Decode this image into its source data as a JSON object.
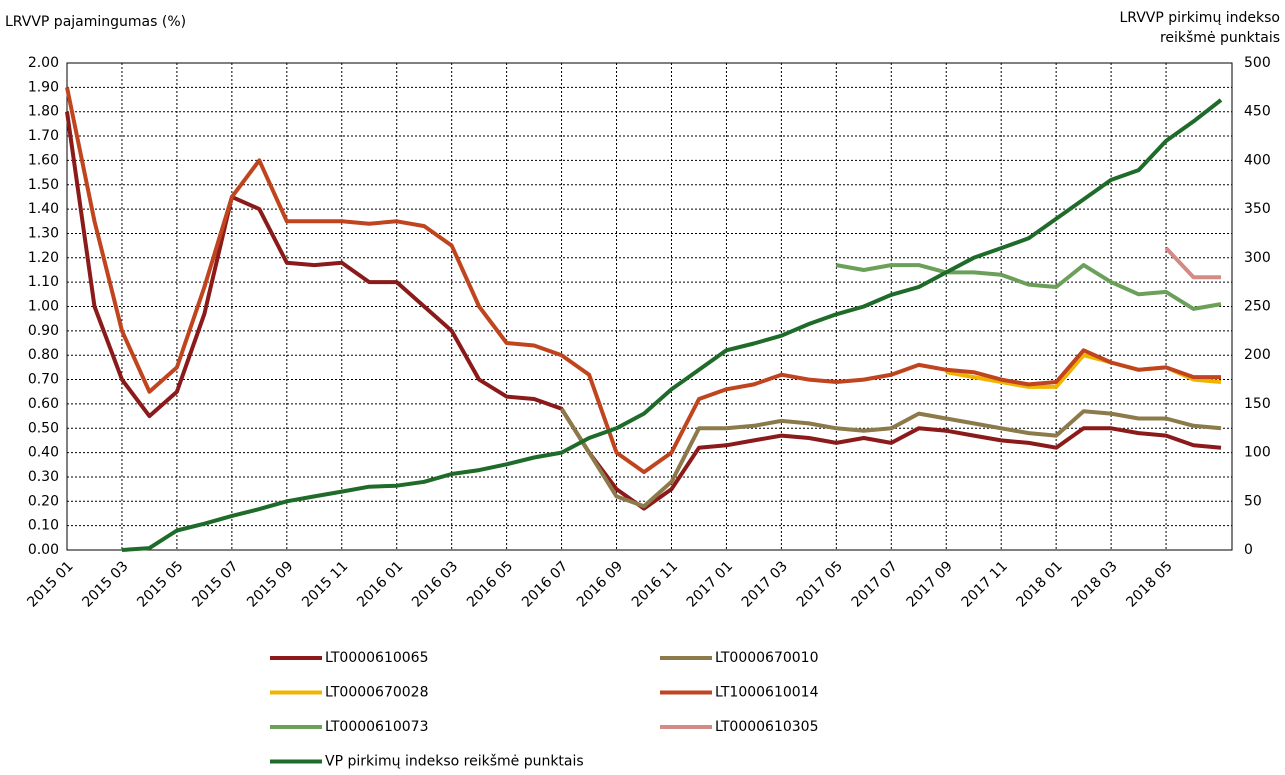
{
  "chart_data": {
    "type": "line",
    "y_label": "LRVVP pajamingumas (%)",
    "y2_label": [
      "LRVVP pirkimų indekso",
      "reikšmė punktais"
    ],
    "categories": [
      "2015 01",
      null,
      "2015 03",
      null,
      "2015 05",
      null,
      "2015 07",
      null,
      "2015 09",
      null,
      "2015 11",
      null,
      "2016 01",
      null,
      "2016 03",
      null,
      "2016 05",
      null,
      "2016 07",
      null,
      "2016 09",
      null,
      "2016 11",
      null,
      "2017 01",
      null,
      "2017 03",
      null,
      "2017 05",
      null,
      "2017 07",
      null,
      "2017 09",
      null,
      "2017 11",
      null,
      "2018 01",
      null,
      "2018 03",
      null,
      "2018 05",
      null,
      null
    ],
    "ylim": [
      0,
      2
    ],
    "yticks": [
      {
        "value": 0,
        "label": "0.00"
      },
      {
        "value": 0.1,
        "label": "0.10"
      },
      {
        "value": 0.2,
        "label": "0.20"
      },
      {
        "value": 0.3,
        "label": "0.30"
      },
      {
        "value": 0.4,
        "label": "0.40"
      },
      {
        "value": 0.5,
        "label": "0.50"
      },
      {
        "value": 0.6,
        "label": "0.60"
      },
      {
        "value": 0.7,
        "label": "0.70"
      },
      {
        "value": 0.8,
        "label": "0.80"
      },
      {
        "value": 0.9,
        "label": "0.90"
      },
      {
        "value": 1,
        "label": "1.00"
      },
      {
        "value": 1.1,
        "label": "1.10"
      },
      {
        "value": 1.2,
        "label": "1.20"
      },
      {
        "value": 1.3,
        "label": "1.30"
      },
      {
        "value": 1.4,
        "label": "1.40"
      },
      {
        "value": 1.5,
        "label": "1.50"
      },
      {
        "value": 1.6,
        "label": "1.60"
      },
      {
        "value": 1.7,
        "label": "1.70"
      },
      {
        "value": 1.8,
        "label": "1.80"
      },
      {
        "value": 1.9,
        "label": "1.90"
      },
      {
        "value": 2,
        "label": "2.00"
      }
    ],
    "y2lim": [
      0,
      500
    ],
    "y2ticks": [
      0,
      50,
      100,
      150,
      200,
      250,
      300,
      350,
      400,
      450,
      500
    ],
    "grid": true,
    "series": [
      {
        "name": "LT0000610065",
        "color": "#8b1a1a",
        "values": [
          1.8,
          1.0,
          0.7,
          0.55,
          0.65,
          0.97,
          1.45,
          1.4,
          1.18,
          1.17,
          1.18,
          1.1,
          1.1,
          1.0,
          0.9,
          0.7,
          0.63,
          0.62,
          0.58,
          0.4,
          0.25,
          0.17,
          0.25,
          0.42,
          0.43,
          0.45,
          0.47,
          0.46,
          0.44,
          0.46,
          0.44,
          0.5,
          0.49,
          0.47,
          0.45,
          0.44,
          0.42,
          0.5,
          0.5,
          0.48,
          0.47,
          0.43,
          0.42
        ]
      },
      {
        "name": "LT0000670010",
        "color": "#8c7a4b",
        "values": [
          null,
          null,
          null,
          null,
          null,
          null,
          null,
          null,
          null,
          null,
          null,
          null,
          null,
          null,
          null,
          null,
          null,
          null,
          0.58,
          0.4,
          0.22,
          0.18,
          0.28,
          0.5,
          0.5,
          0.51,
          0.53,
          0.52,
          0.5,
          0.49,
          0.5,
          0.56,
          0.54,
          0.52,
          0.5,
          0.48,
          0.47,
          0.57,
          0.56,
          0.54,
          0.54,
          0.51,
          0.5
        ]
      },
      {
        "name": "LT0000670028",
        "color": "#f0b400",
        "values": [
          null,
          null,
          null,
          null,
          null,
          null,
          null,
          null,
          null,
          null,
          null,
          null,
          null,
          null,
          null,
          null,
          null,
          null,
          null,
          null,
          null,
          null,
          null,
          null,
          null,
          null,
          null,
          null,
          null,
          null,
          null,
          null,
          0.73,
          0.71,
          0.69,
          0.67,
          0.67,
          0.8,
          0.77,
          0.74,
          0.75,
          0.7,
          0.69
        ]
      },
      {
        "name": "LT1000610014",
        "color": "#c0451f",
        "values": [
          1.9,
          1.35,
          0.9,
          0.65,
          0.75,
          1.08,
          1.45,
          1.6,
          1.35,
          1.35,
          1.35,
          1.34,
          1.35,
          1.33,
          1.25,
          1.0,
          0.85,
          0.84,
          0.8,
          0.72,
          0.4,
          0.32,
          0.4,
          0.62,
          0.66,
          0.68,
          0.72,
          0.7,
          0.69,
          0.7,
          0.72,
          0.76,
          0.74,
          0.73,
          0.7,
          0.68,
          0.69,
          0.82,
          0.77,
          0.74,
          0.75,
          0.71,
          0.71
        ]
      },
      {
        "name": "LT0000610073",
        "color": "#6aa05a",
        "values": [
          null,
          null,
          null,
          null,
          null,
          null,
          null,
          null,
          null,
          null,
          null,
          null,
          null,
          null,
          null,
          null,
          null,
          null,
          null,
          null,
          null,
          null,
          null,
          null,
          null,
          null,
          null,
          null,
          1.17,
          1.15,
          1.17,
          1.17,
          1.14,
          1.14,
          1.13,
          1.09,
          1.08,
          1.17,
          1.1,
          1.05,
          1.06,
          0.99,
          1.01
        ]
      },
      {
        "name": "LT0000610305",
        "color": "#d48a85",
        "values": [
          null,
          null,
          null,
          null,
          null,
          null,
          null,
          null,
          null,
          null,
          null,
          null,
          null,
          null,
          null,
          null,
          null,
          null,
          null,
          null,
          null,
          null,
          null,
          null,
          null,
          null,
          null,
          null,
          null,
          null,
          null,
          null,
          null,
          null,
          null,
          null,
          null,
          null,
          null,
          null,
          1.24,
          1.12,
          1.12
        ]
      },
      {
        "name": "VP pirkimų indekso reikšmė punktais",
        "color": "#1e6b2a",
        "axis": "y2",
        "values": [
          null,
          null,
          0,
          2,
          20,
          27,
          35,
          42,
          50,
          55,
          60,
          65,
          66,
          70,
          78,
          82,
          88,
          95,
          100,
          115,
          125,
          140,
          165,
          185,
          205,
          212,
          220,
          232,
          242,
          250,
          262,
          270,
          285,
          300,
          310,
          320,
          340,
          360,
          380,
          390,
          420,
          440,
          462
        ]
      }
    ]
  }
}
